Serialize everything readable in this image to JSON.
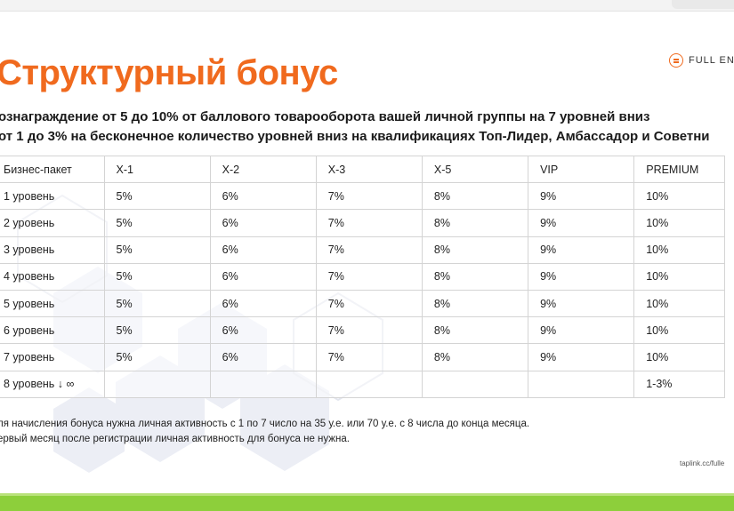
{
  "title": "Структурный бонус",
  "brand": "FULL ENE",
  "lines": [
    "ознаграждение от 5 до 10% от баллового товарооборота вашей личной группы на 7 уровней вниз",
    "от 1 до 3% на бесконечное количество уровней вниз на квалификациях Топ-Лидер, Амбассадор и Советни"
  ],
  "table": {
    "headers": [
      "Бизнес-пакет",
      "Х-1",
      "Х-2",
      "Х-3",
      "Х-5",
      "VIP",
      "PREMIUM"
    ],
    "rows": [
      [
        "1 уровень",
        "5%",
        "6%",
        "7%",
        "8%",
        "9%",
        "10%"
      ],
      [
        "2 уровень",
        "5%",
        "6%",
        "7%",
        "8%",
        "9%",
        "10%"
      ],
      [
        "3 уровень",
        "5%",
        "6%",
        "7%",
        "8%",
        "9%",
        "10%"
      ],
      [
        "4 уровень",
        "5%",
        "6%",
        "7%",
        "8%",
        "9%",
        "10%"
      ],
      [
        "5 уровень",
        "5%",
        "6%",
        "7%",
        "8%",
        "9%",
        "10%"
      ],
      [
        "6 уровень",
        "5%",
        "6%",
        "7%",
        "8%",
        "9%",
        "10%"
      ],
      [
        "7 уровень",
        "5%",
        "6%",
        "7%",
        "8%",
        "9%",
        "10%"
      ],
      [
        "8 уровень ↓ ∞",
        "",
        "",
        "",
        "",
        "",
        "1-3%"
      ]
    ]
  },
  "notes": [
    "ля начисления бонуса нужна личная активность с 1 по 7 число на 35 у.е. или 70 у.е. с 8 числа до конца месяца.",
    "ервый месяц после регистрации личная активность для бонуса не нужна."
  ],
  "url": "taplink.cc/fulle",
  "colors": {
    "accent": "#f06a1e",
    "bottom_bar": "#8dcf3b"
  }
}
